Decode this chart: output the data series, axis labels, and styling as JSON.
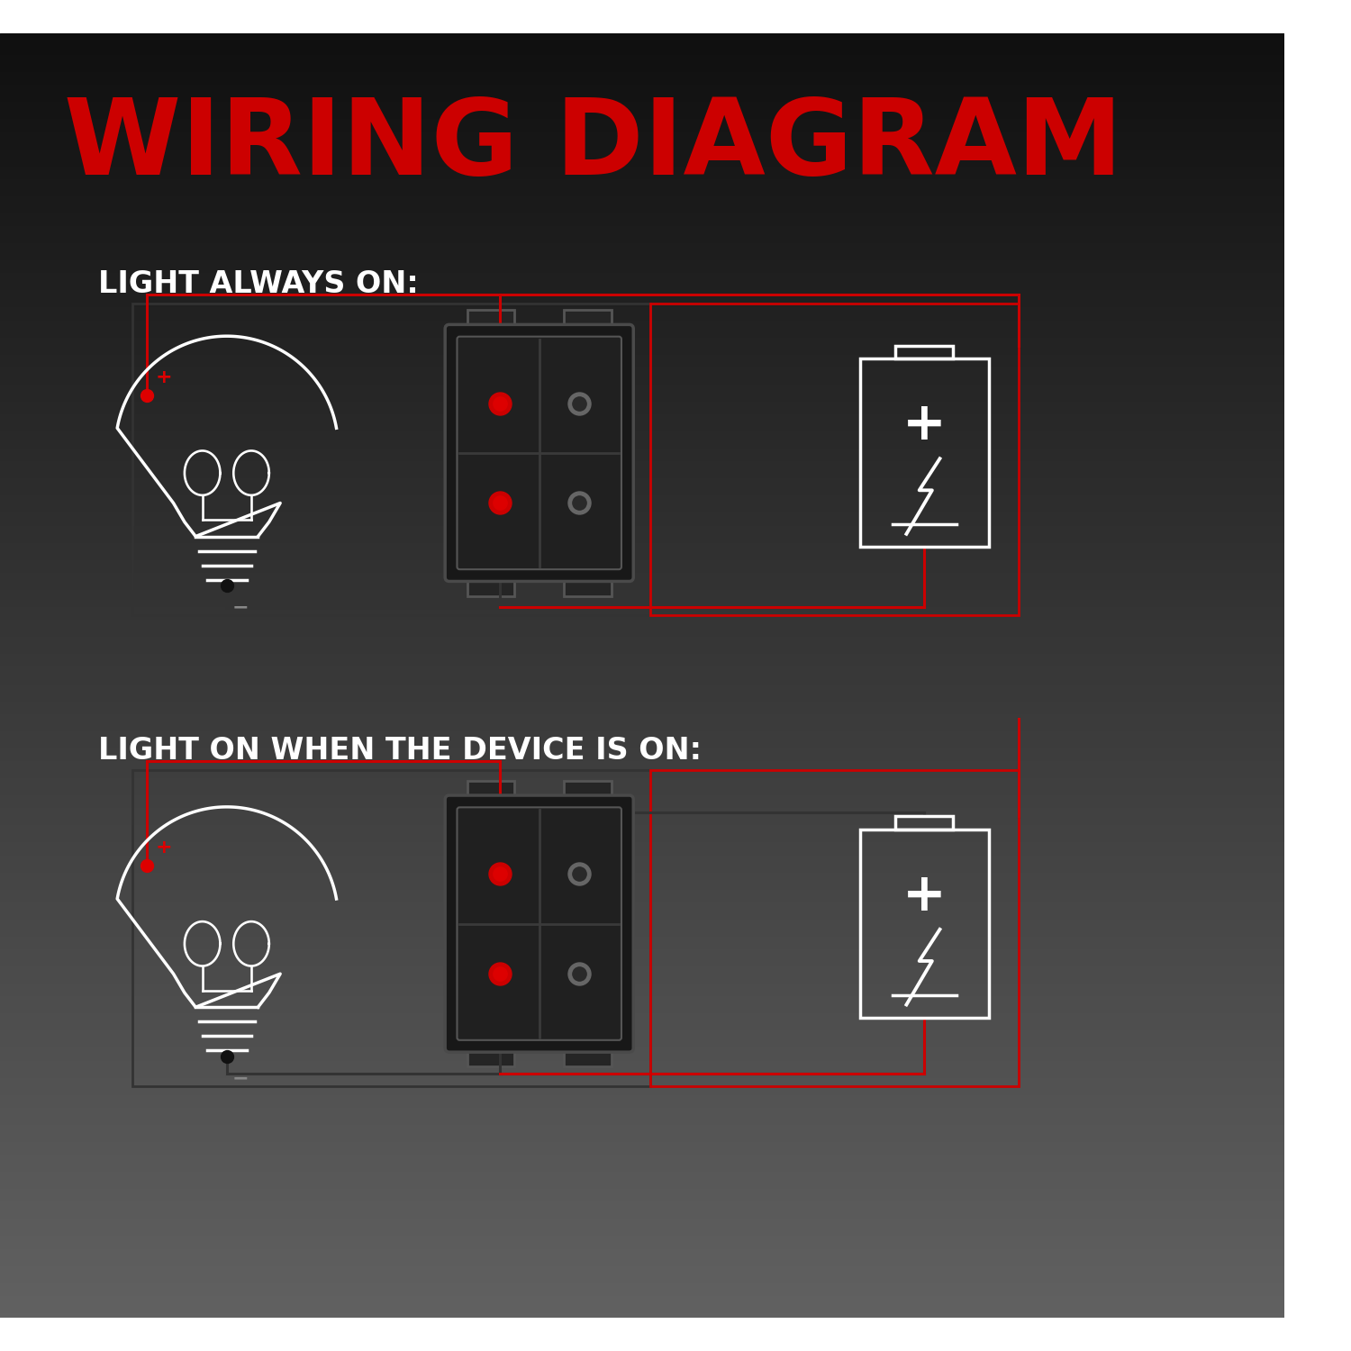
{
  "title": "WIRING DIAGRAM",
  "title_color": "#CC0000",
  "title_fontsize": 85,
  "label1": "LIGHT ALWAYS ON:",
  "label2": "LIGHT ON WHEN THE DEVICE IS ON:",
  "label_color": "#FFFFFF",
  "label_fontsize": 24,
  "wire_red": "#CC0000",
  "wire_black": "#333333",
  "pin_red": "#DD0000",
  "pin_dark": "#222222",
  "lw_wire": 2.2,
  "lw_component": 2.5
}
